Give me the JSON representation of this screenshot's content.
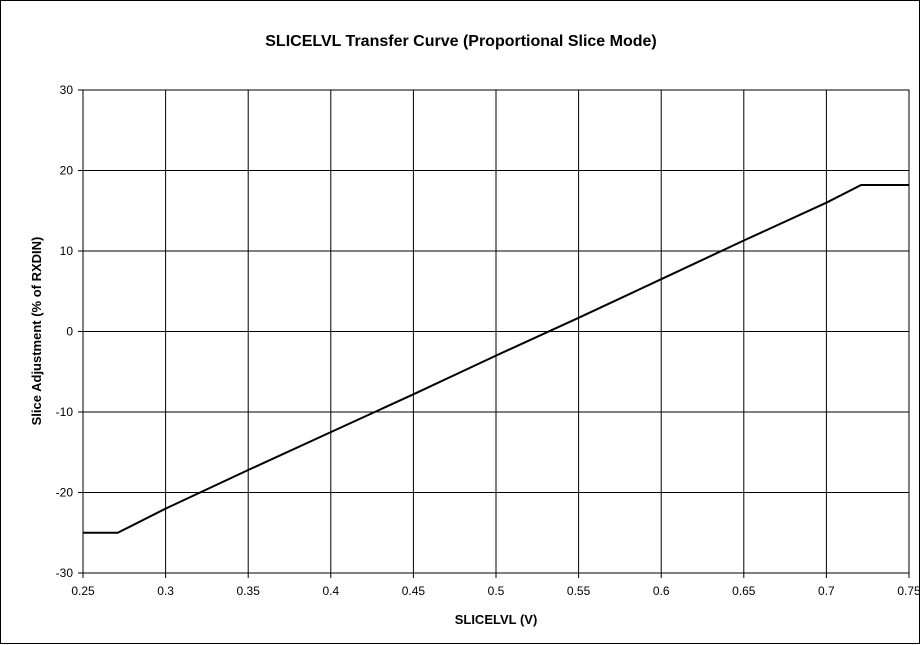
{
  "chart_data": {
    "type": "line",
    "title": "SLICELVL Transfer Curve (Proportional Slice Mode)",
    "xlabel": "SLICELVL (V)",
    "ylabel": "Slice Adjustment (% of RXDIN)",
    "xlim": [
      0.25,
      0.75
    ],
    "ylim": [
      -30,
      30
    ],
    "x_ticks": [
      "0.25",
      "0.3",
      "0.35",
      "0.4",
      "0.45",
      "0.5",
      "0.55",
      "0.6",
      "0.65",
      "0.7",
      "0.75"
    ],
    "y_ticks": [
      "30",
      "20",
      "10",
      "0",
      "-10",
      "-20",
      "-30"
    ],
    "grid": true,
    "legend": "none",
    "series": [
      {
        "x": [
          0.25,
          0.271,
          0.3,
          0.35,
          0.4,
          0.45,
          0.5,
          0.55,
          0.6,
          0.65,
          0.7,
          0.721,
          0.75
        ],
        "y": [
          -25.0,
          -25.0,
          -22.0,
          -17.2,
          -12.5,
          -7.8,
          -3.0,
          1.7,
          6.5,
          11.3,
          16.0,
          18.2,
          18.2
        ],
        "color": "#000000"
      }
    ]
  }
}
